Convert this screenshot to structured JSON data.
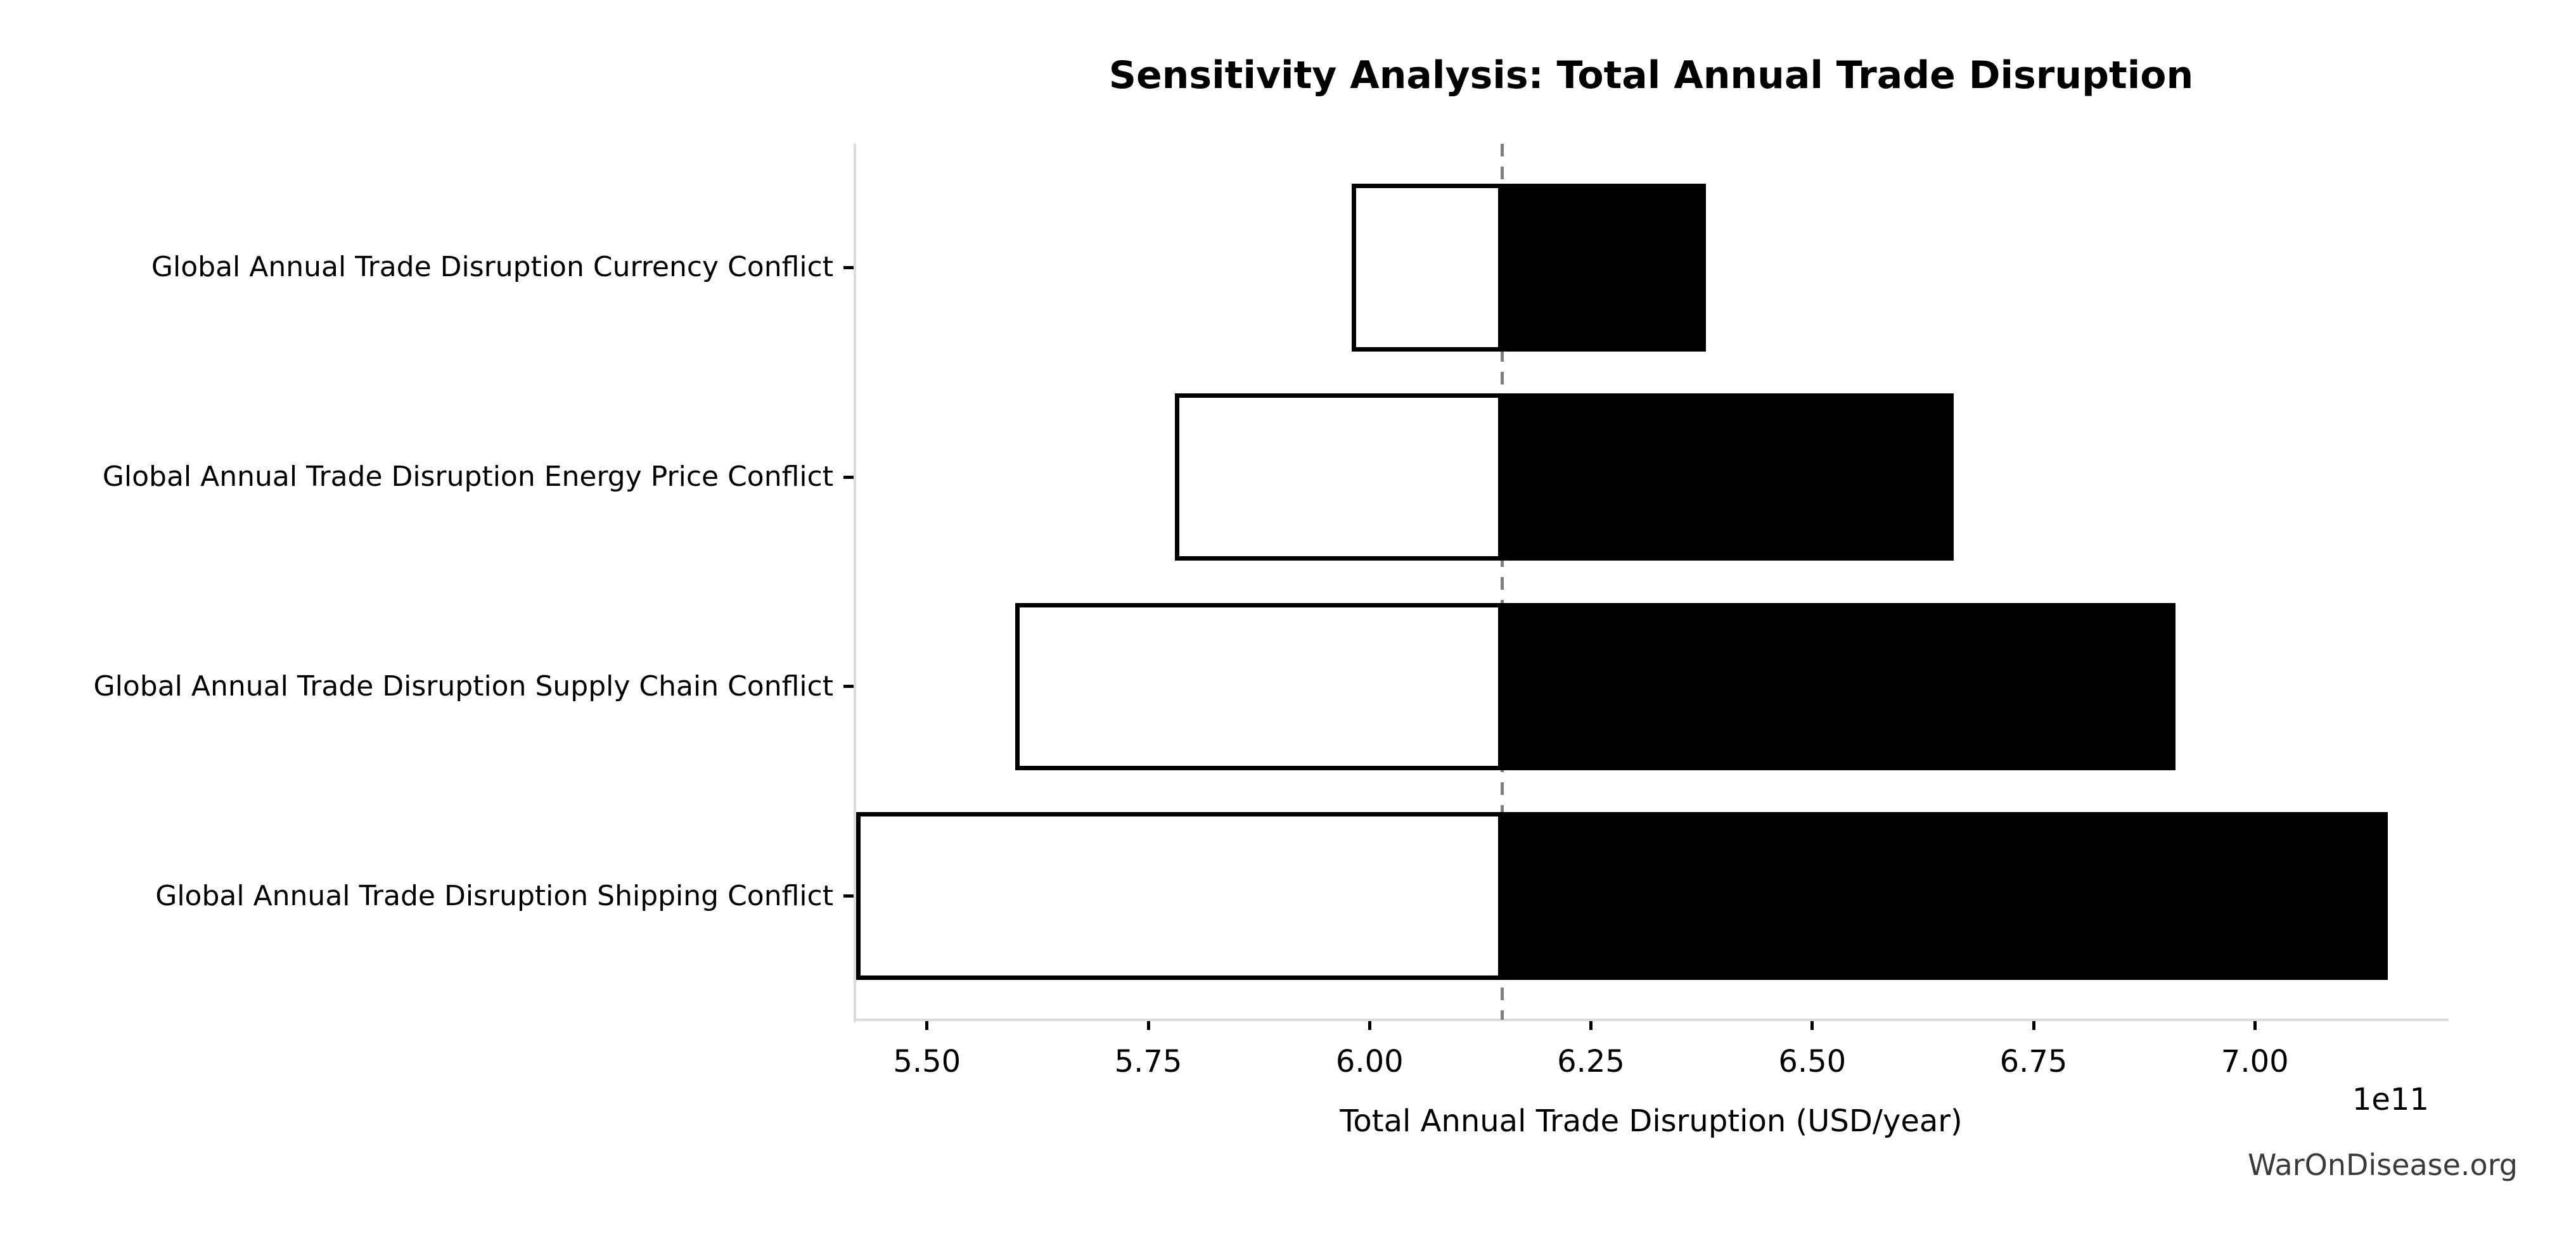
{
  "watermark": {
    "text": "WarOnDisease.org"
  },
  "chart_data": {
    "type": "bar",
    "subtype": "tornado-sensitivity",
    "orientation": "horizontal",
    "title": "Sensitivity Analysis: Total Annual Trade Disruption",
    "xlabel": "Total Annual Trade Disruption (USD/year)",
    "offset_label": "1e11",
    "value_units": "1e11 USD/year",
    "categories": [
      "Global Annual Trade Disruption Currency Conflict",
      "Global Annual Trade Disruption Energy Price Conflict",
      "Global Annual Trade Disruption Supply Chain Conflict",
      "Global Annual Trade Disruption Shipping Conflict"
    ],
    "series": [
      {
        "name": "Low (white bar, outlined)",
        "values": [
          5.98,
          5.78,
          5.6,
          5.42
        ]
      },
      {
        "name": "High (black bar, filled)",
        "values": [
          6.38,
          6.66,
          6.91,
          7.15
        ]
      }
    ],
    "base_value": 6.15,
    "xlim": [
      5.42,
      7.216
    ],
    "x_ticks": [
      5.5,
      5.75,
      6.0,
      6.25,
      6.5,
      6.75,
      7.0
    ],
    "x_tick_labels": [
      "5.50",
      "5.75",
      "6.00",
      "6.25",
      "6.50",
      "6.75",
      "7.00"
    ],
    "grid": false,
    "legend": "none",
    "colors": {
      "bar_high_fill": "#000000",
      "bar_low_fill": "#ffffff",
      "bar_edge": "#000000",
      "baseline_dashed": "#7f7f7f",
      "spine": "#dcdcdc",
      "text": "#000000",
      "watermark": "#3a3a3a",
      "background": "#ffffff"
    }
  }
}
